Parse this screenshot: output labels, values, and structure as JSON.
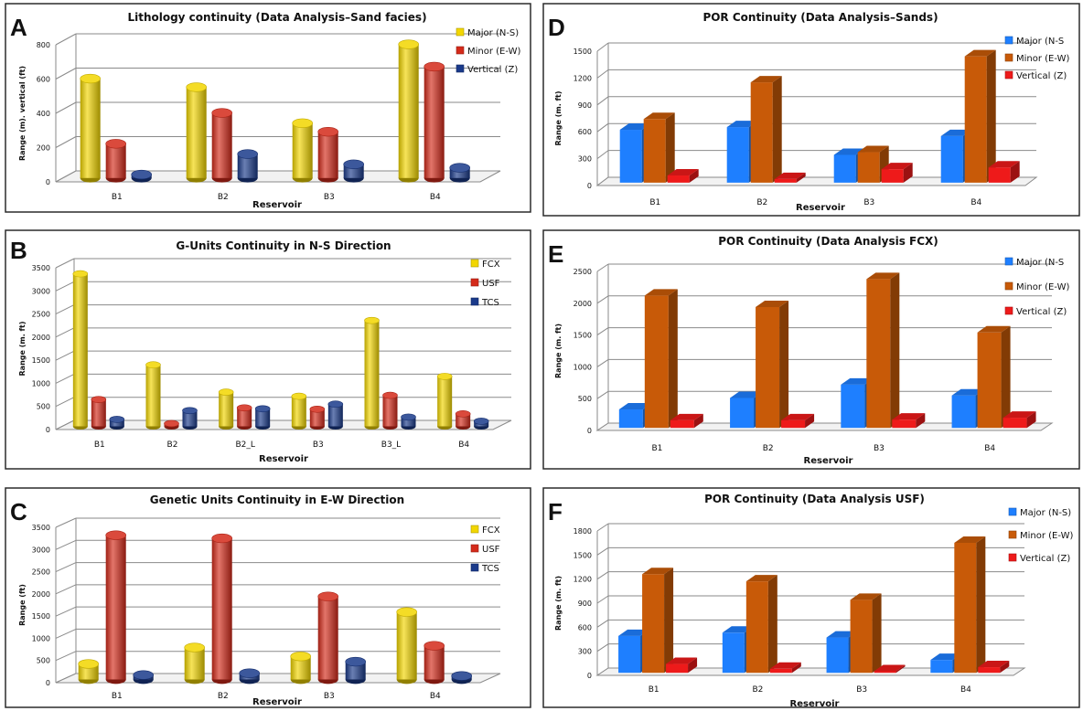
{
  "chart_data": [
    {
      "panel": "A",
      "type": "bar",
      "title": "Lithology continuity  (Data Analysis–Sand facies)",
      "xlabel": "Reservoir",
      "ylabel": "Range (m). vertical (ft)",
      "categories": [
        "B1",
        "B2",
        "B3",
        "B4"
      ],
      "ylim": [
        0,
        800
      ],
      "yticks": [
        0,
        200,
        400,
        600,
        800
      ],
      "legend": "top-right",
      "series": [
        {
          "name": "Major (N-S)",
          "color": "#f2d600",
          "values": [
            580,
            530,
            320,
            780
          ]
        },
        {
          "name": "Minor (E-W)",
          "color": "#d42a1a",
          "values": [
            200,
            380,
            270,
            650
          ]
        },
        {
          "name": "Vertical (Z)",
          "color": "#1a3a8a",
          "values": [
            20,
            140,
            80,
            60
          ]
        }
      ]
    },
    {
      "panel": "B",
      "type": "bar",
      "title": "G-Units Continuity in N-S Direction",
      "xlabel": "Reservoir",
      "ylabel": "Range (m. ft)",
      "categories": [
        "B1",
        "B2",
        "B2_L",
        "B3",
        "B3_L",
        "B4"
      ],
      "ylim": [
        0,
        3500
      ],
      "yticks": [
        0,
        500,
        1000,
        1500,
        2000,
        2500,
        3000,
        3500
      ],
      "legend": "top-right",
      "series": [
        {
          "name": "FCX",
          "color": "#f2d600",
          "values": [
            3300,
            1330,
            740,
            650,
            2290,
            1080
          ]
        },
        {
          "name": "USF",
          "color": "#d42a1a",
          "values": [
            580,
            60,
            400,
            370,
            670,
            270
          ]
        },
        {
          "name": "TCS",
          "color": "#1a3a8a",
          "values": [
            150,
            340,
            380,
            480,
            200,
            110
          ]
        }
      ]
    },
    {
      "panel": "C",
      "type": "bar",
      "title": "Genetic Units Continuity in E-W Direction",
      "xlabel": "Reservoir",
      "ylabel": "Range (ft)",
      "categories": [
        "B1",
        "B2",
        "B3",
        "B4"
      ],
      "ylim": [
        0,
        3500
      ],
      "yticks": [
        0,
        500,
        1000,
        1500,
        2000,
        2500,
        3000,
        3500
      ],
      "legend": "top-right",
      "series": [
        {
          "name": "FCX",
          "color": "#f2d600",
          "values": [
            350,
            720,
            520,
            1520
          ]
        },
        {
          "name": "USF",
          "color": "#d42a1a",
          "values": [
            3250,
            3180,
            1870,
            760
          ]
        },
        {
          "name": "TCS",
          "color": "#1a3a8a",
          "values": [
            100,
            140,
            400,
            80
          ]
        }
      ]
    },
    {
      "panel": "D",
      "type": "bar",
      "title": "POR Continuity  (Data Analysis–Sands)",
      "xlabel": "Reservoir",
      "ylabel": "Range (m. ft)",
      "categories": [
        "B1",
        "B2",
        "B3",
        "B4"
      ],
      "ylim": [
        0,
        1500
      ],
      "yticks": [
        0,
        300,
        600,
        900,
        1200,
        1500
      ],
      "legend": "top-right",
      "series": [
        {
          "name": "Major (N-S",
          "color": "#1e7fff",
          "values": [
            590,
            620,
            310,
            520
          ]
        },
        {
          "name": "Minor (E-W)",
          "color": "#c85a08",
          "values": [
            710,
            1120,
            340,
            1410
          ]
        },
        {
          "name": "Vertical (Z)",
          "color": "#ee1a1a",
          "values": [
            80,
            40,
            150,
            170
          ]
        }
      ]
    },
    {
      "panel": "E",
      "type": "bar",
      "title": "POR Continuity  (Data Analysis FCX)",
      "xlabel": "Reservoir",
      "ylabel": "Range (m. ft)",
      "categories": [
        "B1",
        "B2",
        "B3",
        "B4"
      ],
      "ylim": [
        0,
        2500
      ],
      "yticks": [
        0,
        500,
        1000,
        1500,
        2000,
        2500
      ],
      "legend": "top-right",
      "series": [
        {
          "name": "Major (N-S",
          "color": "#1e7fff",
          "values": [
            290,
            470,
            680,
            510
          ]
        },
        {
          "name": "Minor (E-W)",
          "color": "#c85a08",
          "values": [
            2080,
            1900,
            2340,
            1500
          ]
        },
        {
          "name": "Vertical (Z)",
          "color": "#ee1a1a",
          "values": [
            120,
            120,
            130,
            160
          ]
        }
      ]
    },
    {
      "panel": "F",
      "type": "bar",
      "title": "POR Continuity  (Data Analysis  USF)",
      "xlabel": "Reservoir",
      "ylabel": "Range (m. ft)",
      "categories": [
        "B1",
        "B2",
        "B3",
        "B4"
      ],
      "ylim": [
        0,
        1800
      ],
      "yticks": [
        0,
        300,
        600,
        900,
        1200,
        1500,
        1800
      ],
      "legend": "top-right",
      "series": [
        {
          "name": "Major (N-S)",
          "color": "#1e7fff",
          "values": [
            460,
            500,
            440,
            160
          ]
        },
        {
          "name": "Minor (E-W)",
          "color": "#c85a08",
          "values": [
            1230,
            1140,
            910,
            1620
          ]
        },
        {
          "name": "Vertical (Z)",
          "color": "#ee1a1a",
          "values": [
            110,
            50,
            20,
            70
          ]
        }
      ]
    }
  ]
}
